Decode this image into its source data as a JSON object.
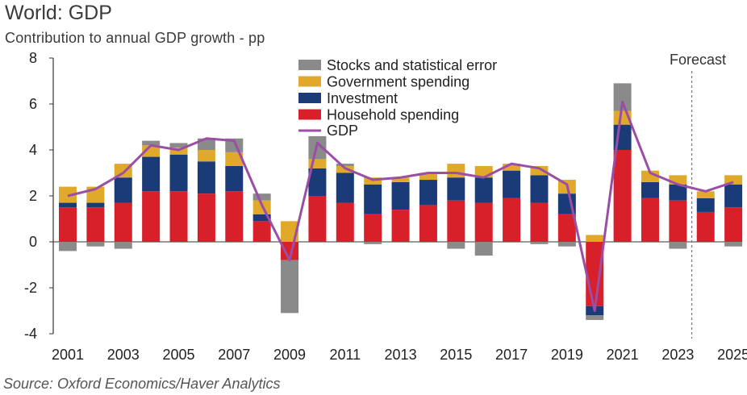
{
  "title": "World: GDP",
  "subtitle": "Contribution to annual GDP growth - pp",
  "source": "Source: Oxford Economics/Haver Analytics",
  "forecast_label": "Forecast",
  "chart_data": {
    "type": "bar",
    "stacked": true,
    "years": [
      2001,
      2002,
      2003,
      2004,
      2005,
      2006,
      2007,
      2008,
      2009,
      2010,
      2011,
      2012,
      2013,
      2014,
      2015,
      2016,
      2017,
      2018,
      2019,
      2020,
      2021,
      2022,
      2023,
      2024,
      2025
    ],
    "x_tick_labels": [
      "2001",
      "2003",
      "2005",
      "2007",
      "2009",
      "2011",
      "2013",
      "2015",
      "2017",
      "2019",
      "2021",
      "2023",
      "2025"
    ],
    "ylim": [
      -4,
      8
    ],
    "y_ticks": [
      "-4",
      "-2",
      "0",
      "2",
      "4",
      "6",
      "8"
    ],
    "forecast_start_after": 2023,
    "series": [
      {
        "name": "Household spending",
        "color": "#d7202a",
        "values": [
          1.5,
          1.5,
          1.7,
          2.2,
          2.2,
          2.1,
          2.2,
          0.9,
          -0.8,
          2.0,
          1.7,
          1.2,
          1.4,
          1.6,
          1.8,
          1.7,
          1.9,
          1.7,
          1.2,
          -2.8,
          4.0,
          1.9,
          1.8,
          1.3,
          1.5
        ]
      },
      {
        "name": "Investment",
        "color": "#1a3a78",
        "values": [
          0.2,
          0.2,
          1.1,
          1.5,
          1.6,
          1.4,
          1.1,
          0.3,
          0.0,
          1.2,
          1.3,
          1.3,
          1.2,
          1.1,
          1.0,
          1.1,
          1.2,
          1.2,
          0.9,
          -0.4,
          1.1,
          0.7,
          0.7,
          0.6,
          1.0
        ]
      },
      {
        "name": "Government spending",
        "color": "#e0a92a",
        "values": [
          0.7,
          0.7,
          0.6,
          0.5,
          0.3,
          0.5,
          0.6,
          0.6,
          0.9,
          0.4,
          0.3,
          0.3,
          0.2,
          0.3,
          0.6,
          0.5,
          0.3,
          0.4,
          0.6,
          0.3,
          0.6,
          0.5,
          0.4,
          0.3,
          0.4
        ]
      },
      {
        "name": "Stocks and statistical error",
        "color": "#8a8a8a",
        "values": [
          -0.4,
          -0.2,
          -0.3,
          0.2,
          0.2,
          0.5,
          0.6,
          0.3,
          -2.3,
          1.0,
          0.1,
          -0.1,
          0.0,
          0.0,
          -0.3,
          -0.6,
          0.0,
          -0.1,
          -0.2,
          -0.2,
          1.2,
          0.0,
          -0.3,
          0.0,
          -0.2
        ]
      }
    ],
    "line": {
      "name": "GDP",
      "color": "#9b4ea5",
      "values": [
        2.0,
        2.3,
        3.0,
        4.2,
        4.0,
        4.5,
        4.4,
        1.6,
        -0.8,
        4.3,
        3.2,
        2.7,
        2.8,
        3.0,
        3.0,
        2.8,
        3.4,
        3.2,
        2.5,
        -3.0,
        6.1,
        3.0,
        2.5,
        2.2,
        2.6
      ]
    },
    "legend_position": "top-center"
  }
}
